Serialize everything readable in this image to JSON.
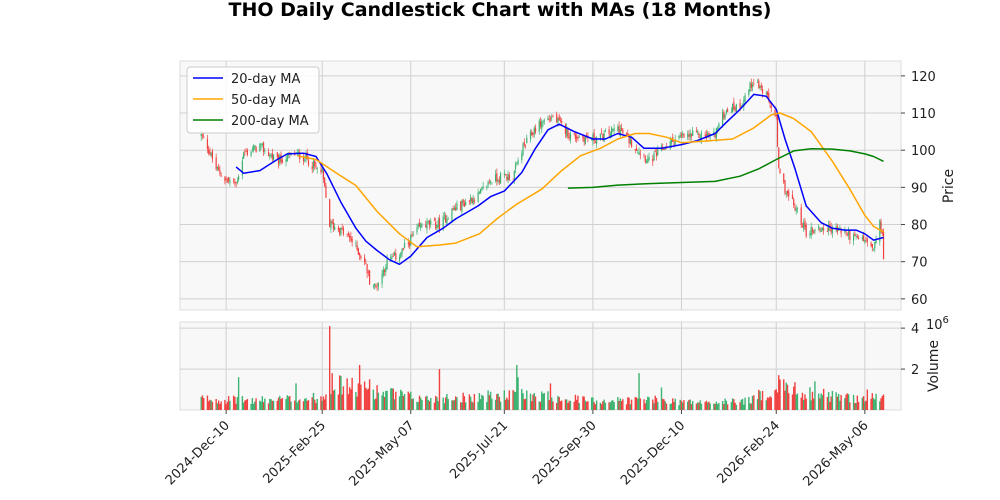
{
  "chart_data": {
    "type": "candlestick",
    "title": "THO Daily Candlestick Chart with MAs (18 Months)",
    "price_axis": {
      "label": "Price",
      "ylim": [
        57,
        124
      ],
      "ticks": [
        60,
        70,
        80,
        90,
        100,
        110,
        120
      ]
    },
    "volume_axis": {
      "label": "Volume",
      "exponent_label": "10^6",
      "exponent_base": "10",
      "exponent_power": "6",
      "ylim": [
        0,
        4.3
      ],
      "ticks": [
        2,
        4
      ]
    },
    "x_axis": {
      "date_range": [
        "2024-11-20",
        "2026-05-21"
      ],
      "ticks": [
        "2024-Dec-10",
        "2025-Feb-25",
        "2025-May-07",
        "2025-Jul-21",
        "2025-Sep-30",
        "2025-Dec-10",
        "2026-Feb-24",
        "2026-May-06"
      ]
    },
    "price_anchors": [
      [
        "2024-11-20",
        104
      ],
      [
        "2024-11-25",
        101
      ],
      [
        "2024-12-02",
        95
      ],
      [
        "2024-12-10",
        92
      ],
      [
        "2024-12-18",
        91
      ],
      [
        "2024-12-24",
        99
      ],
      [
        "2025-01-06",
        101
      ],
      [
        "2025-01-20",
        97
      ],
      [
        "2025-02-03",
        99
      ],
      [
        "2025-02-12",
        98
      ],
      [
        "2025-02-20",
        95
      ],
      [
        "2025-02-25",
        94
      ],
      [
        "2025-03-03",
        80
      ],
      [
        "2025-03-10",
        79
      ],
      [
        "2025-03-20",
        76
      ],
      [
        "2025-03-31",
        70
      ],
      [
        "2025-04-04",
        65
      ],
      [
        "2025-04-09",
        63
      ],
      [
        "2025-04-18",
        70
      ],
      [
        "2025-04-28",
        72
      ],
      [
        "2025-05-07",
        76
      ],
      [
        "2025-05-16",
        80
      ],
      [
        "2025-05-30",
        80
      ],
      [
        "2025-06-10",
        84
      ],
      [
        "2025-06-20",
        86
      ],
      [
        "2025-07-01",
        88
      ],
      [
        "2025-07-10",
        92
      ],
      [
        "2025-07-21",
        93
      ],
      [
        "2025-07-28",
        93
      ],
      [
        "2025-08-04",
        100
      ],
      [
        "2025-08-15",
        106
      ],
      [
        "2025-08-22",
        108
      ],
      [
        "2025-08-29",
        109
      ],
      [
        "2025-09-12",
        104
      ],
      [
        "2025-09-30",
        103
      ],
      [
        "2025-10-10",
        104
      ],
      [
        "2025-10-20",
        106
      ],
      [
        "2025-10-31",
        102
      ],
      [
        "2025-11-14",
        97
      ],
      [
        "2025-11-24",
        100
      ],
      [
        "2025-12-05",
        103
      ],
      [
        "2025-12-19",
        104
      ],
      [
        "2026-01-05",
        104
      ],
      [
        "2026-01-15",
        111
      ],
      [
        "2026-01-26",
        112
      ],
      [
        "2026-02-06",
        119
      ],
      [
        "2026-02-13",
        116
      ],
      [
        "2026-02-20",
        112
      ],
      [
        "2026-02-24",
        108
      ],
      [
        "2026-02-26",
        94
      ],
      [
        "2026-03-05",
        88
      ],
      [
        "2026-03-12",
        84
      ],
      [
        "2026-03-20",
        78
      ],
      [
        "2026-03-31",
        79
      ],
      [
        "2026-04-10",
        79
      ],
      [
        "2026-04-20",
        78
      ],
      [
        "2026-04-29",
        76
      ],
      [
        "2026-05-06",
        76
      ],
      [
        "2026-05-13",
        73
      ],
      [
        "2026-05-18",
        80
      ],
      [
        "2026-05-20",
        78
      ],
      [
        "2026-05-21",
        71
      ]
    ],
    "volume_anchors": [
      [
        "2024-11-20",
        0.55
      ],
      [
        "2024-12-31",
        0.45
      ],
      [
        "2025-02-25",
        0.6
      ],
      [
        "2025-03-03",
        1.3
      ],
      [
        "2025-04-10",
        0.9
      ],
      [
        "2025-05-15",
        0.55
      ],
      [
        "2025-06-30",
        0.65
      ],
      [
        "2025-08-10",
        0.75
      ],
      [
        "2025-09-30",
        0.45
      ],
      [
        "2025-11-15",
        0.5
      ],
      [
        "2025-12-31",
        0.35
      ],
      [
        "2026-02-01",
        0.45
      ],
      [
        "2026-02-26",
        1.1
      ],
      [
        "2026-03-20",
        0.85
      ],
      [
        "2026-04-20",
        0.6
      ],
      [
        "2026-05-21",
        0.6
      ]
    ],
    "volume_spikes": [
      [
        "2024-12-20",
        1.6
      ],
      [
        "2025-02-04",
        1.3
      ],
      [
        "2025-03-03",
        4.1
      ],
      [
        "2025-03-05",
        1.8
      ],
      [
        "2025-03-27",
        2.2
      ],
      [
        "2025-04-04",
        1.5
      ],
      [
        "2025-05-30",
        2.0
      ],
      [
        "2025-07-31",
        2.2
      ],
      [
        "2025-08-01",
        1.6
      ],
      [
        "2025-08-27",
        1.3
      ],
      [
        "2025-11-06",
        1.8
      ],
      [
        "2025-11-24",
        1.1
      ],
      [
        "2026-02-26",
        1.7
      ],
      [
        "2026-03-02",
        1.5
      ],
      [
        "2026-03-27",
        1.4
      ],
      [
        "2026-05-08",
        1.0
      ]
    ],
    "series": [
      {
        "name": "20-day MA",
        "color": "#0000ff",
        "points": [
          [
            "2024-12-18",
            95.5
          ],
          [
            "2024-12-24",
            93.8
          ],
          [
            "2025-01-06",
            94.5
          ],
          [
            "2025-01-20",
            97.5
          ],
          [
            "2025-01-28",
            99.0
          ],
          [
            "2025-02-10",
            99.2
          ],
          [
            "2025-02-20",
            98.3
          ],
          [
            "2025-03-01",
            93.5
          ],
          [
            "2025-03-12",
            86.0
          ],
          [
            "2025-03-24",
            79.0
          ],
          [
            "2025-04-01",
            75.5
          ],
          [
            "2025-04-10",
            73.0
          ],
          [
            "2025-04-20",
            70.5
          ],
          [
            "2025-04-28",
            69.3
          ],
          [
            "2025-05-07",
            71.5
          ],
          [
            "2025-05-20",
            76.5
          ],
          [
            "2025-06-02",
            79.0
          ],
          [
            "2025-06-12",
            81.5
          ],
          [
            "2025-06-30",
            85.0
          ],
          [
            "2025-07-10",
            87.5
          ],
          [
            "2025-07-21",
            89.0
          ],
          [
            "2025-07-28",
            91.5
          ],
          [
            "2025-08-04",
            94.0
          ],
          [
            "2025-08-15",
            100.5
          ],
          [
            "2025-08-25",
            105.5
          ],
          [
            "2025-09-03",
            107.0
          ],
          [
            "2025-09-15",
            105.0
          ],
          [
            "2025-09-30",
            103.0
          ],
          [
            "2025-10-10",
            103.0
          ],
          [
            "2025-10-20",
            104.5
          ],
          [
            "2025-10-31",
            103.5
          ],
          [
            "2025-11-10",
            100.5
          ],
          [
            "2025-11-24",
            100.5
          ],
          [
            "2025-12-10",
            101.5
          ],
          [
            "2025-12-22",
            102.5
          ],
          [
            "2026-01-06",
            104.5
          ],
          [
            "2026-01-15",
            107.5
          ],
          [
            "2026-01-26",
            111.0
          ],
          [
            "2026-02-06",
            115.0
          ],
          [
            "2026-02-16",
            114.5
          ],
          [
            "2026-02-24",
            111.0
          ],
          [
            "2026-03-03",
            103.0
          ],
          [
            "2026-03-11",
            95.0
          ],
          [
            "2026-03-20",
            85.0
          ],
          [
            "2026-04-01",
            80.5
          ],
          [
            "2026-04-10",
            79.0
          ],
          [
            "2026-04-20",
            78.5
          ],
          [
            "2026-04-29",
            78.5
          ],
          [
            "2026-05-06",
            77.5
          ],
          [
            "2026-05-13",
            75.8
          ],
          [
            "2026-05-21",
            76.5
          ]
        ]
      },
      {
        "name": "50-day MA",
        "color": "#ffa500",
        "points": [
          [
            "2025-02-05",
            98.5
          ],
          [
            "2025-02-20",
            97.5
          ],
          [
            "2025-03-10",
            93.5
          ],
          [
            "2025-03-24",
            90.5
          ],
          [
            "2025-04-10",
            83.5
          ],
          [
            "2025-04-28",
            77.5
          ],
          [
            "2025-05-12",
            74.0
          ],
          [
            "2025-05-30",
            74.5
          ],
          [
            "2025-06-12",
            75.0
          ],
          [
            "2025-07-01",
            77.5
          ],
          [
            "2025-07-15",
            81.5
          ],
          [
            "2025-07-31",
            85.5
          ],
          [
            "2025-08-20",
            89.5
          ],
          [
            "2025-09-05",
            94.5
          ],
          [
            "2025-09-20",
            98.5
          ],
          [
            "2025-10-06",
            100.5
          ],
          [
            "2025-10-20",
            103.0
          ],
          [
            "2025-11-03",
            104.5
          ],
          [
            "2025-11-14",
            104.5
          ],
          [
            "2025-11-28",
            103.5
          ],
          [
            "2025-12-10",
            102.0
          ],
          [
            "2025-12-31",
            102.5
          ],
          [
            "2026-01-20",
            103.0
          ],
          [
            "2026-02-06",
            106.0
          ],
          [
            "2026-02-20",
            109.5
          ],
          [
            "2026-02-27",
            110.0
          ],
          [
            "2026-03-10",
            108.5
          ],
          [
            "2026-03-24",
            105.0
          ],
          [
            "2026-04-10",
            97.0
          ],
          [
            "2026-04-24",
            89.5
          ],
          [
            "2026-05-06",
            82.5
          ],
          [
            "2026-05-13",
            79.5
          ],
          [
            "2026-05-21",
            78.0
          ]
        ]
      },
      {
        "name": "200-day MA",
        "color": "#008000",
        "points": [
          [
            "2025-09-10",
            89.8
          ],
          [
            "2025-09-30",
            90.0
          ],
          [
            "2025-10-20",
            90.6
          ],
          [
            "2025-11-14",
            91.0
          ],
          [
            "2025-12-10",
            91.3
          ],
          [
            "2026-01-06",
            91.6
          ],
          [
            "2026-01-26",
            93.0
          ],
          [
            "2026-02-10",
            95.0
          ],
          [
            "2026-02-24",
            97.5
          ],
          [
            "2026-03-10",
            99.8
          ],
          [
            "2026-03-24",
            100.4
          ],
          [
            "2026-04-10",
            100.3
          ],
          [
            "2026-04-24",
            99.8
          ],
          [
            "2026-05-06",
            99.0
          ],
          [
            "2026-05-13",
            98.3
          ],
          [
            "2026-05-21",
            97.0
          ]
        ]
      }
    ],
    "candle_colors": {
      "up": "#3cb371",
      "down": "#f04040"
    },
    "grid": true,
    "legend_position": "top-left"
  }
}
